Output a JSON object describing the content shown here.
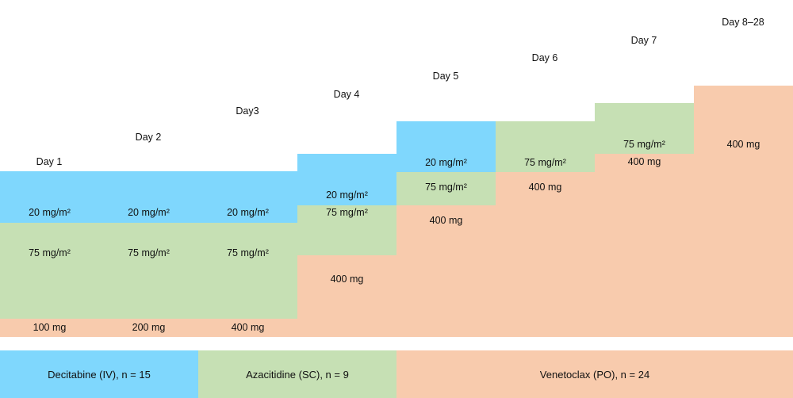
{
  "colors": {
    "decitabine": "#7fd7fd",
    "azacitidine": "#c6e0b4",
    "venetoclax": "#f8cbad"
  },
  "days": [
    "Day 1",
    "Day 2",
    "Day3",
    "Day 4",
    "Day 5",
    "Day 6",
    "Day 7",
    "Day 8–28"
  ],
  "schedule": [
    {
      "decitabine": "20 mg/m²",
      "azacitidine": "75 mg/m²",
      "venetoclax": "100 mg"
    },
    {
      "decitabine": "20 mg/m²",
      "azacitidine": "75 mg/m²",
      "venetoclax": "200 mg"
    },
    {
      "decitabine": "20 mg/m²",
      "azacitidine": "75 mg/m²",
      "venetoclax": "400 mg"
    },
    {
      "decitabine": "20 mg/m²",
      "azacitidine": "75 mg/m²",
      "venetoclax": "400 mg"
    },
    {
      "decitabine": "20 mg/m²",
      "azacitidine": "75 mg/m²",
      "venetoclax": "400 mg"
    },
    {
      "azacitidine": "75 mg/m²",
      "venetoclax": "400 mg"
    },
    {
      "azacitidine": "75 mg/m²",
      "venetoclax": "400 mg"
    },
    {
      "venetoclax": "400 mg"
    }
  ],
  "legend": {
    "decitabine": "Decitabine (IV), n = 15",
    "azacitidine": "Azacitidine (SC), n = 9",
    "venetoclax": "Venetoclax (PO), n = 24"
  }
}
